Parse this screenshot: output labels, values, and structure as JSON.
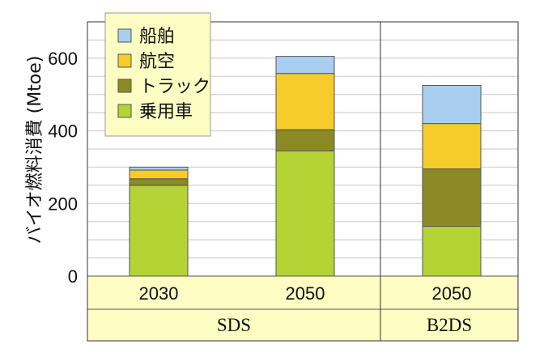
{
  "chart_data": {
    "type": "bar",
    "stacked": true,
    "ylabel": "バイオ燃料消費 (Mtoe)",
    "ylim": [
      0,
      700
    ],
    "yticks": [
      0,
      200,
      400,
      600
    ],
    "grid": true,
    "legend_position": "top-left",
    "categories": [
      "2030",
      "2050",
      "2050"
    ],
    "groups": [
      {
        "label": "SDS",
        "categories": [
          0,
          1
        ]
      },
      {
        "label": "B2DS",
        "categories": [
          2
        ]
      }
    ],
    "series": [
      {
        "name": "乗用車",
        "color": "#b5d334",
        "values": [
          250,
          345,
          137
        ]
      },
      {
        "name": "トラック",
        "color": "#8b8a26",
        "values": [
          18,
          58,
          158
        ]
      },
      {
        "name": "航空",
        "color": "#f5cc2a",
        "values": [
          24,
          155,
          125
        ]
      },
      {
        "name": "船舶",
        "color": "#a9cff0",
        "values": [
          8,
          47,
          105
        ]
      }
    ]
  }
}
